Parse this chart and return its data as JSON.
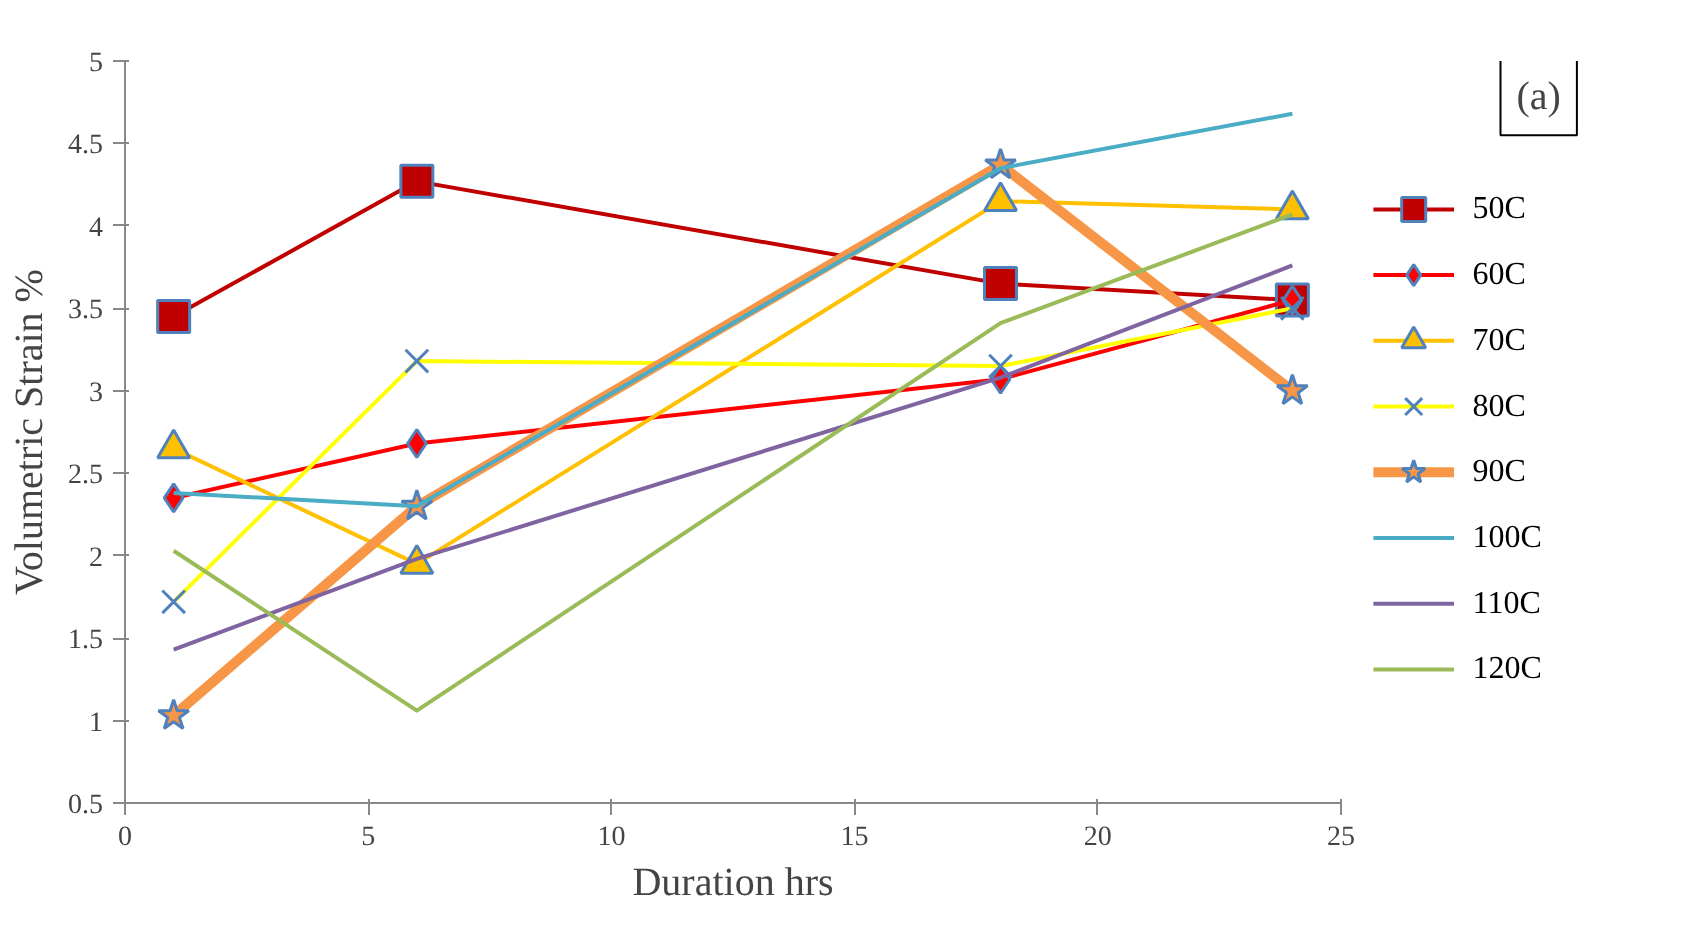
{
  "chart_data": {
    "type": "line",
    "xlabel": "Duration hrs",
    "ylabel": "Volumetric Strain %",
    "annotations": [
      "(a)"
    ],
    "x": [
      1,
      6,
      18,
      24
    ],
    "xlim": [
      0,
      25
    ],
    "xticks": [
      0,
      5,
      10,
      15,
      20,
      25
    ],
    "ylim": [
      0.5,
      5
    ],
    "yticks": [
      0.5,
      1,
      1.5,
      2,
      2.5,
      3,
      3.5,
      4,
      4.5,
      5
    ],
    "grid": false,
    "legend": "right",
    "series": [
      {
        "name": "50C",
        "color": "#c00000",
        "marker": "square",
        "values": [
          3.45,
          4.27,
          3.65,
          3.55
        ]
      },
      {
        "name": "60C",
        "color": "#ff0000",
        "marker": "diamond",
        "values": [
          2.35,
          2.68,
          3.07,
          3.55
        ]
      },
      {
        "name": "70C",
        "color": "#ffc000",
        "marker": "triangle",
        "values": [
          2.65,
          1.95,
          4.15,
          4.1
        ]
      },
      {
        "name": "80C",
        "color": "#ffff00",
        "marker": "cross",
        "values": [
          1.72,
          3.18,
          3.15,
          3.5
        ]
      },
      {
        "name": "90C",
        "color": "#f79646",
        "marker": "star",
        "values": [
          1.03,
          2.3,
          4.37,
          3.0
        ]
      },
      {
        "name": "100C",
        "color": "#4bacc6",
        "marker": "none",
        "values": [
          2.38,
          2.3,
          4.35,
          4.68
        ]
      },
      {
        "name": "110C",
        "color": "#8064a2",
        "marker": "none",
        "values": [
          1.43,
          1.98,
          3.08,
          3.76
        ]
      },
      {
        "name": "120C",
        "color": "#9bbb59",
        "marker": "none",
        "values": [
          2.03,
          1.06,
          3.41,
          4.07
        ]
      }
    ]
  }
}
